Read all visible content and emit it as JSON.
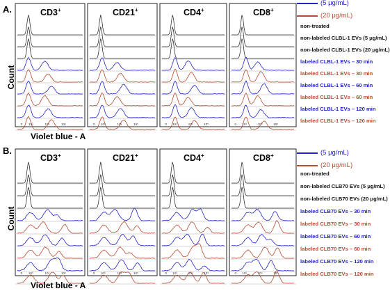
{
  "colors": {
    "blue": "#2323c8",
    "red": "#b84a2e",
    "black": "#333333",
    "gray": "#b0b0b0"
  },
  "legend": {
    "low": "(5 μg/mL)",
    "high": "(20 μg/mL)"
  },
  "x_axis_label": "Violet blue - A",
  "y_axis_label": "Count",
  "ticks": [
    "0",
    "10³",
    "10⁴",
    "10⁵"
  ],
  "panels": [
    {
      "letter": "A.",
      "markers": [
        {
          "base": "CD3",
          "sup": "+"
        },
        {
          "base": "CD21",
          "sup": "+"
        },
        {
          "base": "CD4",
          "sup": "+"
        },
        {
          "base": "CD8",
          "sup": "+"
        }
      ],
      "conditions": [
        {
          "label": "non-treated",
          "color": "black"
        },
        {
          "label": "non-labeled CLBL-1 EVs (5 μg/mL)",
          "color": "black"
        },
        {
          "label": "non-labeled CLBL-1 EVs (20 μg/mL)",
          "color": "black"
        },
        {
          "label": "labeled CLBL-1 EVs – 30 min",
          "color": "blue"
        },
        {
          "label": "labeled CLBL-1 EVs – 30 min",
          "color": "red"
        },
        {
          "label": "labeled CLBL-1 EVs – 60 min",
          "color": "blue"
        },
        {
          "label": "labeled CLBL-1 EVs – 60 min",
          "color": "red"
        },
        {
          "label": "labeled CLBL-1 EVs – 120 min",
          "color": "blue"
        },
        {
          "label": "labeled CLBL-1 EVs – 120 min",
          "color": "red"
        }
      ]
    },
    {
      "letter": "B.",
      "markers": [
        {
          "base": "CD3",
          "sup": "+"
        },
        {
          "base": "CD21",
          "sup": "+"
        },
        {
          "base": "CD4",
          "sup": "+"
        },
        {
          "base": "CD8",
          "sup": "+"
        }
      ],
      "conditions": [
        {
          "label": "non-treated",
          "color": "black"
        },
        {
          "label": "non-labeled CLB70 EVs (5 μg/mL)",
          "color": "black"
        },
        {
          "label": "non-labeled CLB70 EVs (20 μg/mL)",
          "color": "black"
        },
        {
          "label": "labeled CLB70 EVs – 30 min",
          "color": "blue"
        },
        {
          "label": "labeled CLB70 EVs – 30 min",
          "color": "red"
        },
        {
          "label": "labeled CLB70 EVs – 60 min",
          "color": "blue"
        },
        {
          "label": "labeled CLB70 EVs – 60 min",
          "color": "red"
        },
        {
          "label": "labeled CLB70 EVs – 120 min",
          "color": "blue"
        },
        {
          "label": "labeled CLB70 EVs – 120 min",
          "color": "red"
        }
      ]
    }
  ]
}
